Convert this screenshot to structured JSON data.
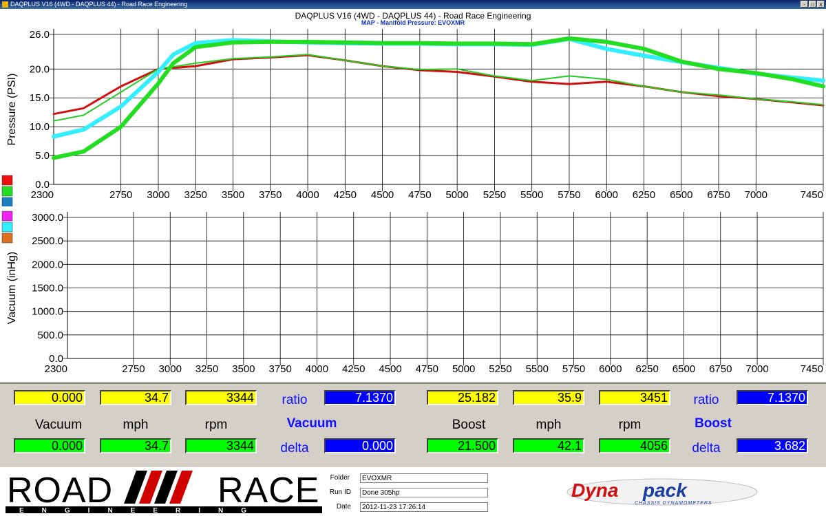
{
  "window": {
    "title": "DAQPLUS V16 (4WD - DAQPLUS 44) - Road Race Engineering",
    "controls": [
      "-",
      "□",
      "x"
    ]
  },
  "chart_title": "DAQPLUS V16 (4WD - DAQPLUS 44) - Road Race Engineering",
  "chart_subtitle": "MAP - Manifold Pressure: EVOXMR",
  "chart_data": [
    {
      "type": "line",
      "title": "MAP - Manifold Pressure: EVOXMR",
      "xlabel": "",
      "ylabel": "Pressure (PSI)",
      "xlim": [
        2300,
        7450
      ],
      "ylim": [
        0,
        26
      ],
      "x_ticks": [
        "2300",
        "2750",
        "3000",
        "3250",
        "3500",
        "3750",
        "4000",
        "4250",
        "4500",
        "4750",
        "5000",
        "5250",
        "5500",
        "5750",
        "6000",
        "6250",
        "6500",
        "6750",
        "7000",
        "7450"
      ],
      "y_ticks": [
        "26.0",
        "20.0",
        "15.0",
        "10.0",
        "5.0",
        "0.0"
      ],
      "grid": true,
      "series": [
        {
          "color": "#d01010",
          "width": 3,
          "x": [
            2300,
            2500,
            2750,
            3000,
            3250,
            3500,
            3750,
            4000,
            4250,
            4500,
            4750,
            5000,
            5250,
            5500,
            5750,
            6000,
            6250,
            6500,
            6750,
            7000,
            7250,
            7450
          ],
          "values": [
            12.2,
            13.2,
            17.0,
            20.0,
            20.5,
            21.7,
            22.0,
            22.4,
            21.5,
            20.5,
            19.8,
            19.5,
            18.7,
            17.8,
            17.4,
            17.8,
            17.0,
            16.0,
            15.3,
            14.8,
            14.2,
            13.7
          ]
        },
        {
          "color": "#22cc22",
          "width": 2,
          "x": [
            2300,
            2500,
            2750,
            3000,
            3250,
            3500,
            3750,
            4000,
            4250,
            4500,
            4750,
            5000,
            5250,
            5500,
            5750,
            6000,
            6250,
            6500,
            6750,
            7000,
            7250,
            7450
          ],
          "values": [
            11.0,
            12.0,
            16.0,
            20.0,
            21.0,
            21.8,
            22.1,
            22.5,
            21.5,
            20.5,
            19.9,
            20.0,
            18.8,
            18.0,
            18.8,
            18.2,
            17.0,
            16.0,
            15.5,
            14.8,
            14.3,
            13.8
          ]
        },
        {
          "color": "#33eeff",
          "width": 6,
          "x": [
            2300,
            2500,
            2750,
            3000,
            3100,
            3250,
            3500,
            3750,
            4000,
            4250,
            4500,
            4750,
            5000,
            5250,
            5500,
            5750,
            6000,
            6250,
            6500,
            6750,
            7000,
            7250,
            7450
          ],
          "values": [
            8.3,
            9.5,
            13.5,
            19.5,
            22.5,
            24.5,
            25.0,
            24.8,
            24.6,
            24.5,
            24.4,
            24.4,
            24.3,
            24.3,
            24.2,
            25.2,
            23.5,
            22.3,
            21.2,
            20.2,
            19.2,
            18.5,
            18.0
          ]
        },
        {
          "color": "#22dd22",
          "width": 6,
          "x": [
            2300,
            2500,
            2750,
            3000,
            3100,
            3250,
            3500,
            3750,
            4000,
            4250,
            4500,
            4750,
            5000,
            5250,
            5500,
            5750,
            6000,
            6250,
            6500,
            6750,
            7000,
            7250,
            7450
          ],
          "values": [
            4.6,
            5.7,
            10.0,
            17.5,
            21.0,
            23.8,
            24.6,
            24.7,
            24.7,
            24.6,
            24.5,
            24.5,
            24.4,
            24.4,
            24.3,
            25.3,
            24.7,
            23.5,
            21.3,
            20.0,
            19.3,
            18.2,
            17.0
          ]
        }
      ],
      "legend_colors": [
        "#ee1010",
        "#22dd22",
        "#1a7fc0"
      ]
    },
    {
      "type": "line",
      "title": "",
      "xlabel": "",
      "ylabel": "Vacuum (inHg)",
      "xlim": [
        2300,
        7450
      ],
      "ylim": [
        0,
        3000
      ],
      "x_ticks": [
        "2300",
        "2750",
        "3000",
        "3250",
        "3500",
        "3750",
        "4000",
        "4250",
        "4500",
        "4750",
        "5000",
        "5250",
        "5500",
        "5750",
        "6000",
        "6250",
        "6500",
        "6750",
        "7000",
        "7450"
      ],
      "y_ticks": [
        "3000.0",
        "2500.0",
        "2000.0",
        "1500.0",
        "1000.0",
        "500.0",
        "0.0"
      ],
      "grid": true,
      "series": [],
      "legend_colors": [
        "#ee22ee",
        "#33eeff",
        "#e07020"
      ]
    }
  ],
  "readouts": {
    "vacuum_top": [
      "0.000",
      "34.7",
      "3344"
    ],
    "vacuum_ratio_label": "ratio",
    "vacuum_ratio": "7.1370",
    "vacuum_col_labels": [
      "Vacuum",
      "mph",
      "rpm"
    ],
    "vacuum_title": "Vacuum",
    "vacuum_bottom": [
      "0.000",
      "34.7",
      "3344"
    ],
    "vacuum_delta_label": "delta",
    "vacuum_delta": "0.000",
    "boost_top": [
      "25.182",
      "35.9",
      "3451"
    ],
    "boost_ratio_label": "ratio",
    "boost_ratio": "7.1370",
    "boost_col_labels": [
      "Boost",
      "mph",
      "rpm"
    ],
    "boost_title": "Boost",
    "boost_bottom": [
      "21.500",
      "42.1",
      "4056"
    ],
    "boost_delta_label": "delta",
    "boost_delta": "3.682"
  },
  "footer": {
    "logo_left": "ROAD RACE ENGINEERING",
    "folder_label": "Folder",
    "folder_value": "EVOXMR",
    "runid_label": "Run ID",
    "runid_value": "Done 305hp",
    "date_label": "Date",
    "date_value": "2012-11-23 17:26:14",
    "logo_right": "Dynapack",
    "logo_right_sub": "CHASSIS DYNAMOMETERS"
  }
}
